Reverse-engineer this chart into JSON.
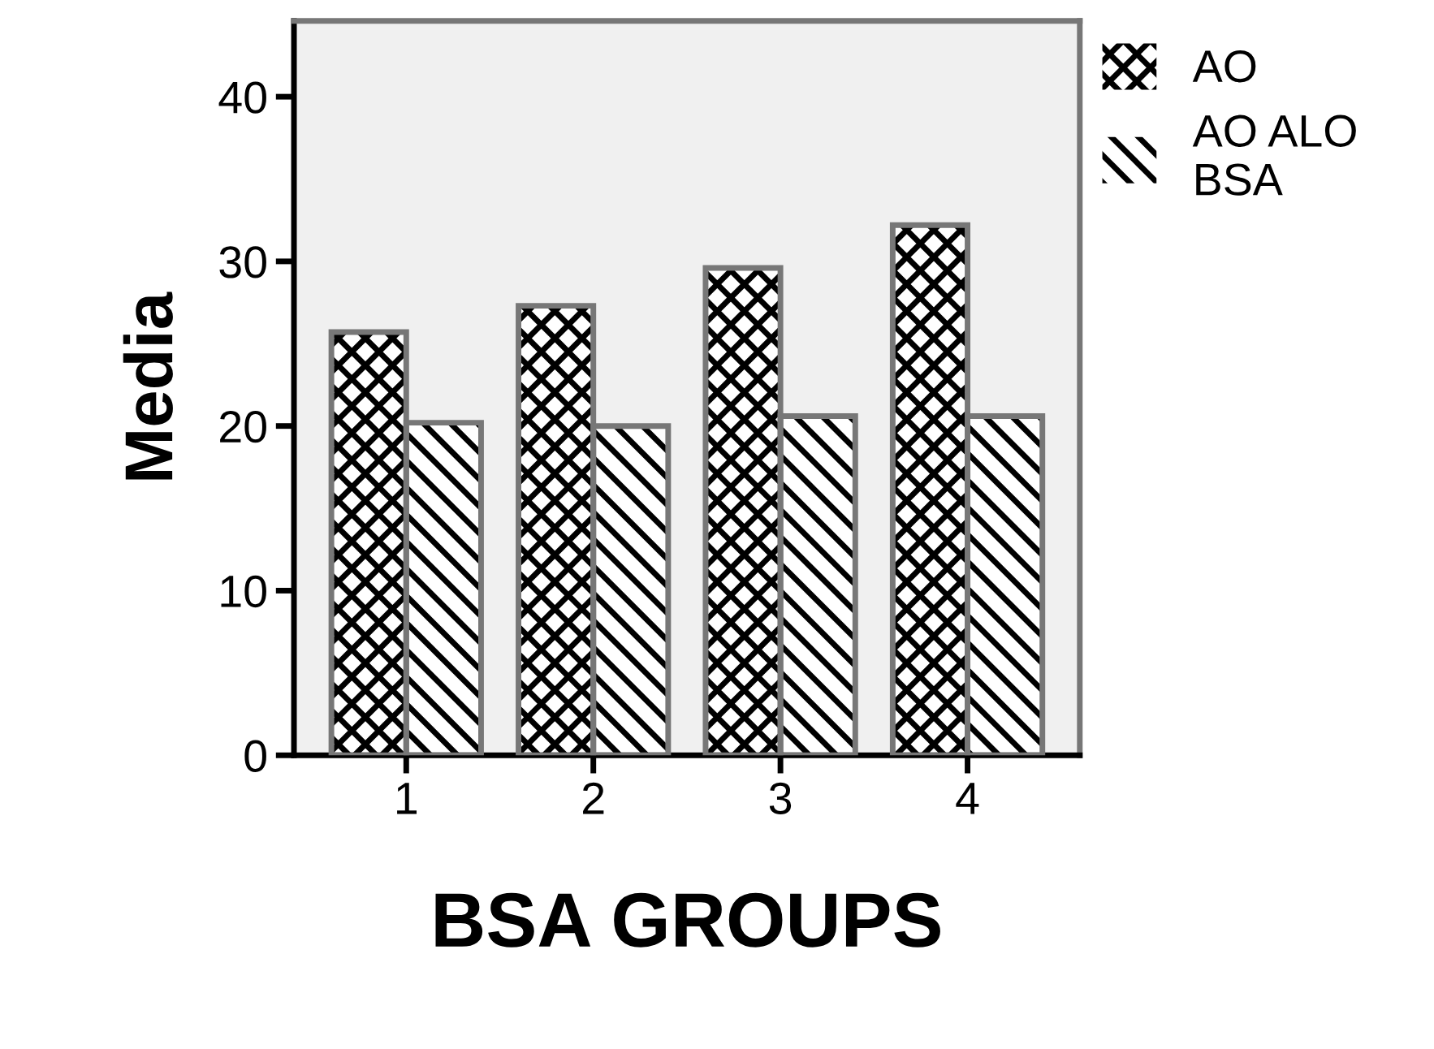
{
  "chart_data": {
    "type": "bar",
    "xlabel": "BSA GROUPS",
    "ylabel": "Media",
    "categories": [
      "1",
      "2",
      "3",
      "4"
    ],
    "series": [
      {
        "name": "AO",
        "color": "#ffffff",
        "values": [
          25.7,
          27.3,
          29.6,
          32.2
        ]
      },
      {
        "name": "AO ALO\nBSA",
        "color": "#ffffff",
        "values": [
          20.2,
          20.0,
          20.6,
          20.6
        ]
      }
    ],
    "ylim": [
      0,
      44.6
    ],
    "yticks": [
      0,
      10,
      20,
      30,
      40
    ],
    "grid": false,
    "legend": "top right"
  }
}
